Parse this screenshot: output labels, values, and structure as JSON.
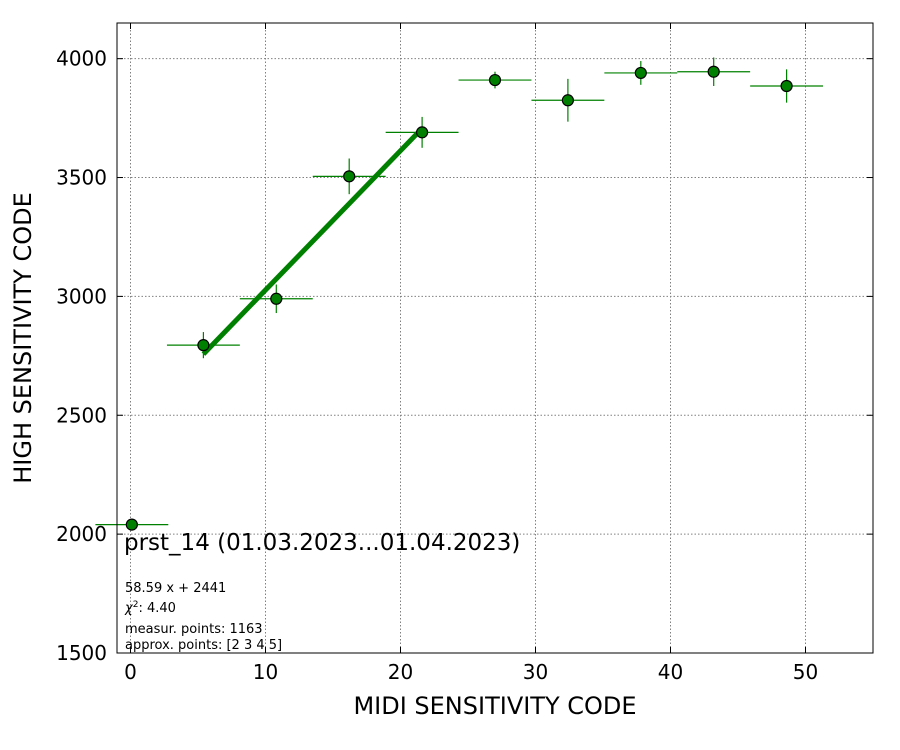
{
  "chart_data": {
    "type": "scatter",
    "xlabel": "MIDI SENSITIVITY CODE",
    "ylabel": "HIGH SENSITIVITY CODE",
    "xlim": [
      -1,
      55
    ],
    "ylim": [
      1500,
      4150
    ],
    "x_ticks": [
      0,
      10,
      20,
      30,
      40,
      50
    ],
    "y_ticks": [
      1500,
      2000,
      2500,
      3000,
      3500,
      4000
    ],
    "grid": true,
    "colors": {
      "marker": "#008000",
      "fit_line": "#008000",
      "errorbar": "#008000",
      "marker_edge": "#000000"
    },
    "series": [
      {
        "x": [
          0.1,
          5.4,
          10.8,
          16.2,
          21.6,
          27.0,
          32.4,
          37.8,
          43.2,
          48.6
        ],
        "y": [
          2040,
          2795,
          2990,
          3505,
          3690,
          3910,
          3825,
          3940,
          3945,
          3885
        ],
        "x_err": [
          2.7,
          2.7,
          2.7,
          2.7,
          2.7,
          2.7,
          2.7,
          2.7,
          2.7,
          2.7
        ],
        "y_err": [
          5,
          55,
          60,
          75,
          65,
          35,
          90,
          50,
          60,
          70
        ]
      }
    ],
    "fit_line": {
      "slope": 58.59,
      "intercept": 2441,
      "x_range": [
        5.4,
        21.6
      ]
    },
    "annotations": {
      "title": "prst_14 (01.03.2023...01.04.2023)",
      "equation": "58.59 x + 2441",
      "chi_label": "χ",
      "chi_sup": "2",
      "chi_value": ": 4.40",
      "measur_points": "measur. points: 1163",
      "approx_points": "approx. points: [2 3 4 5]"
    }
  }
}
